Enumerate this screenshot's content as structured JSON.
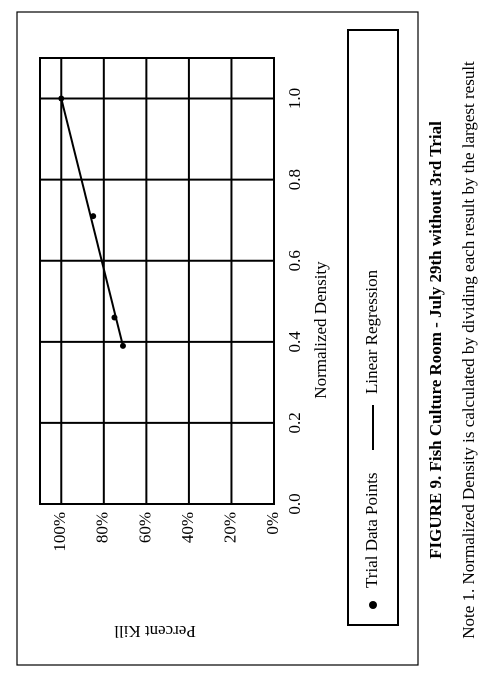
{
  "chart_data": {
    "type": "scatter",
    "x_label": "Normalized Density",
    "y_label": "Percent Kill",
    "caption": "FIGURE 9.  Fish Culture Room - July 29th without 3rd Trial",
    "note": "Note  1. Normalized Density is calculated by dividing each result by the largest result",
    "xlim": [
      0,
      1.1
    ],
    "ylim": [
      0,
      110
    ],
    "xticks": [
      {
        "value": 0,
        "label": "0.0"
      },
      0.2,
      0.4,
      0.6,
      0.8,
      {
        "value": 1,
        "label": "1.0"
      }
    ],
    "yticks": [
      {
        "value": 0,
        "label": "0%"
      },
      {
        "value": 20,
        "label": "20%"
      },
      {
        "value": 40,
        "label": "40%"
      },
      {
        "value": 60,
        "label": "60%"
      },
      {
        "value": 80,
        "label": "80%"
      },
      {
        "value": 100,
        "label": "100%"
      }
    ],
    "grid": true,
    "series": [
      {
        "name": "Trial Data Points",
        "type": "scatter",
        "color": "#000000",
        "x": [
          1,
          0.71,
          0.46,
          0.39
        ],
        "values": [
          100,
          85,
          75,
          71
        ]
      },
      {
        "name": "Linear Regression",
        "type": "line",
        "color": "#000000",
        "x": [
          0.39,
          1
        ],
        "values": [
          71,
          100
        ]
      }
    ]
  }
}
